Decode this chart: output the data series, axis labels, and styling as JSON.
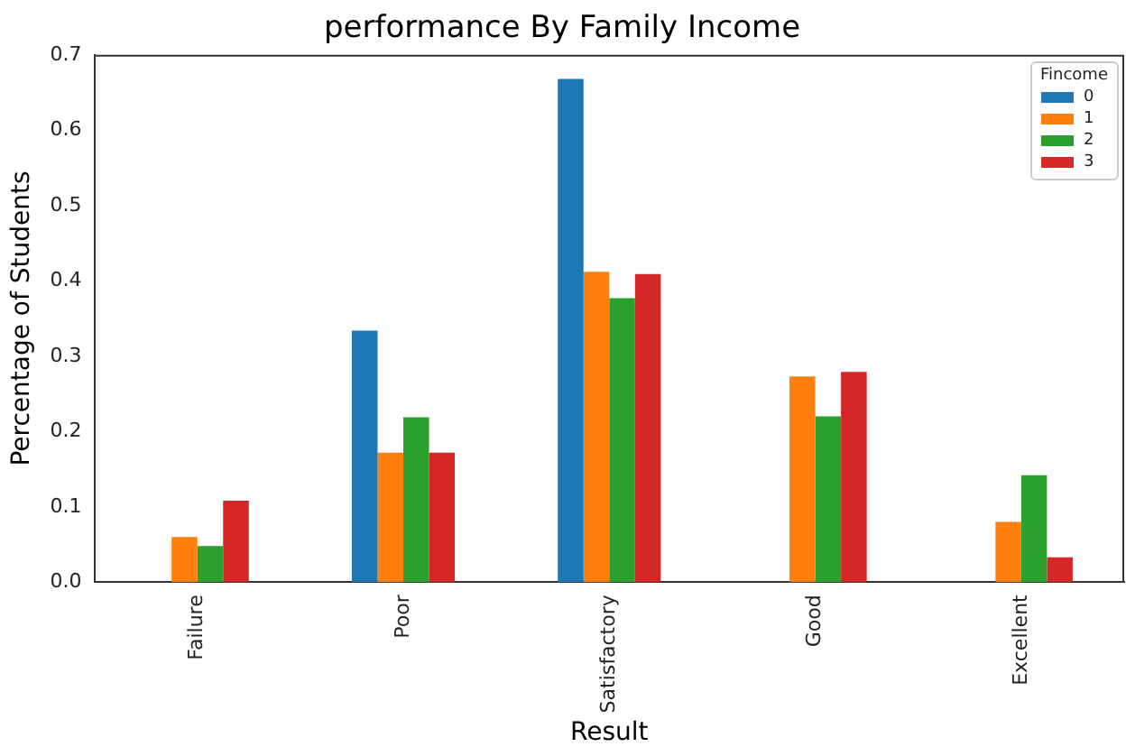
{
  "chart_data": {
    "type": "bar",
    "title": "performance By Family Income",
    "xlabel": "Result",
    "ylabel": "Percentage of Students",
    "legend_title": "Fincome",
    "legend": "top right",
    "grid": false,
    "categories": [
      "Failure",
      "Poor",
      "Satisfactory",
      "Good",
      "Excellent"
    ],
    "ylim": [
      0,
      0.7
    ],
    "yticks": [
      {
        "value": 0,
        "label": "0.0"
      },
      0.1,
      0.2,
      0.3,
      0.4,
      0.5,
      0.6,
      0.7
    ],
    "series": [
      {
        "name": "0",
        "color": "#1f77b4",
        "values": [
          null,
          0.334,
          0.668,
          null,
          null
        ]
      },
      {
        "name": "1",
        "color": "#ff7f0e",
        "values": [
          0.06,
          0.172,
          0.412,
          0.273,
          0.08
        ]
      },
      {
        "name": "2",
        "color": "#2ca02c",
        "values": [
          0.048,
          0.219,
          0.377,
          0.22,
          0.142
        ]
      },
      {
        "name": "3",
        "color": "#d62728",
        "values": [
          0.108,
          0.172,
          0.409,
          0.279,
          0.033
        ]
      }
    ]
  }
}
